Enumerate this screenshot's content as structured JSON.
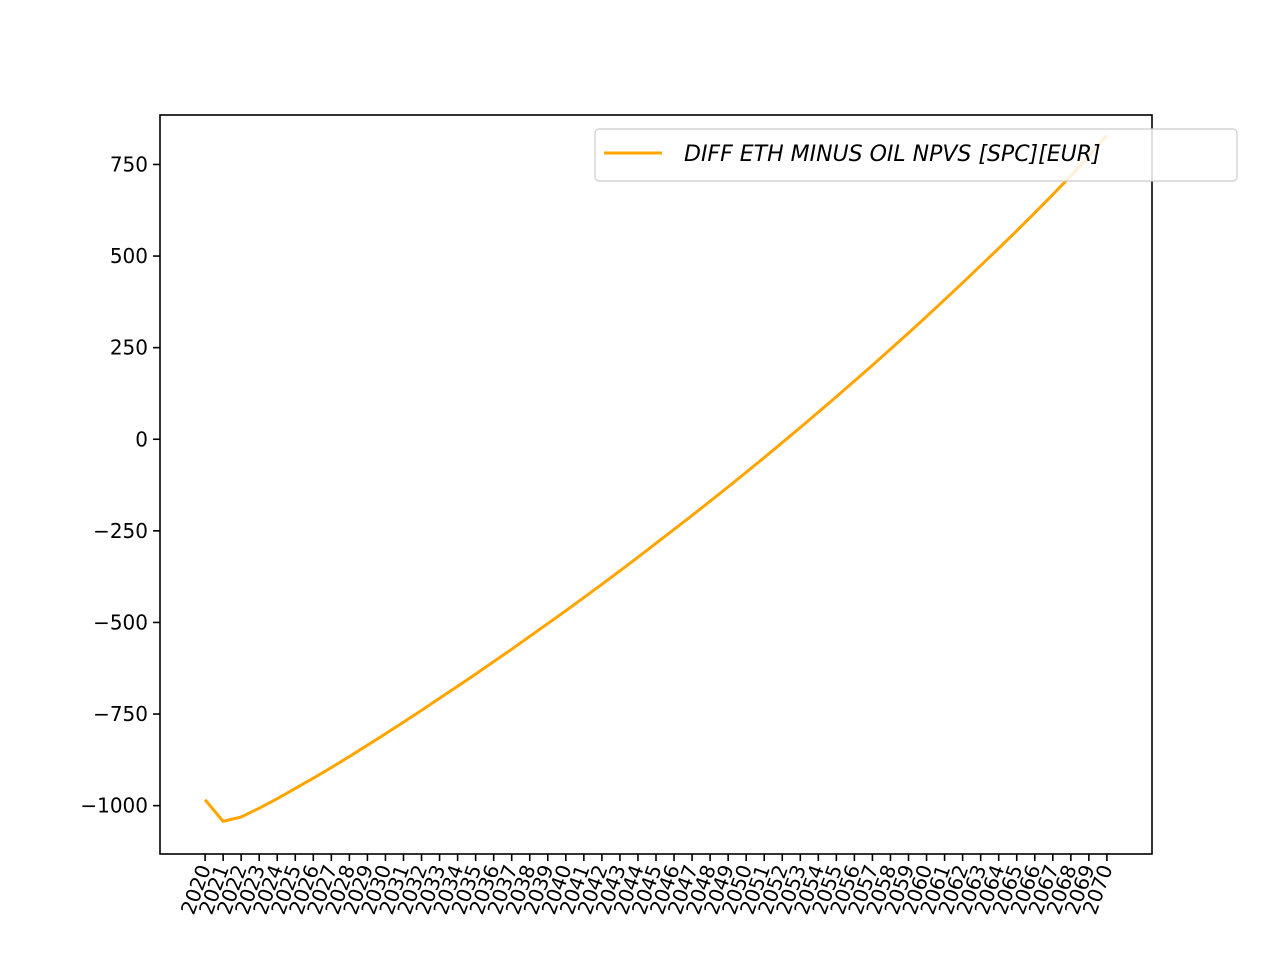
{
  "chart_data": {
    "type": "line",
    "title": "",
    "xlabel": "",
    "ylabel": "",
    "x": [
      2020,
      2021,
      2022,
      2023,
      2024,
      2025,
      2026,
      2027,
      2028,
      2029,
      2030,
      2031,
      2032,
      2033,
      2034,
      2035,
      2036,
      2037,
      2038,
      2039,
      2040,
      2041,
      2042,
      2043,
      2044,
      2045,
      2046,
      2047,
      2048,
      2049,
      2050,
      2051,
      2052,
      2053,
      2054,
      2055,
      2056,
      2057,
      2058,
      2059,
      2060,
      2061,
      2062,
      2063,
      2064,
      2065,
      2066,
      2067,
      2068,
      2069,
      2070
    ],
    "series": [
      {
        "name": "DIFF ETH MINUS OIL NPVS [SPC][EUR]",
        "color": "#ffa500",
        "values": [
          -984,
          -1043,
          -1031,
          -1007,
          -981,
          -953,
          -925,
          -896,
          -866,
          -835,
          -804,
          -772,
          -740,
          -707,
          -674,
          -641,
          -607,
          -573,
          -538,
          -503,
          -468,
          -432,
          -396,
          -359,
          -322,
          -284,
          -246,
          -208,
          -169,
          -130,
          -90,
          -50,
          -9,
          32,
          74,
          116,
          159,
          202,
          246,
          290,
          335,
          381,
          427,
          474,
          521,
          569,
          618,
          668,
          719,
          773,
          830
        ]
      }
    ],
    "xlim": [
      2017.5,
      2072.5
    ],
    "ylim": [
      -1132,
      885
    ],
    "yticks": [
      -1000,
      -750,
      -500,
      -250,
      0,
      250,
      500,
      750
    ],
    "ytick_labels": [
      "−1000",
      "−750",
      "−500",
      "−250",
      "0",
      "250",
      "500",
      "750"
    ],
    "x_tick_rotation": 70,
    "grid": false,
    "legend_position": "upper right"
  }
}
